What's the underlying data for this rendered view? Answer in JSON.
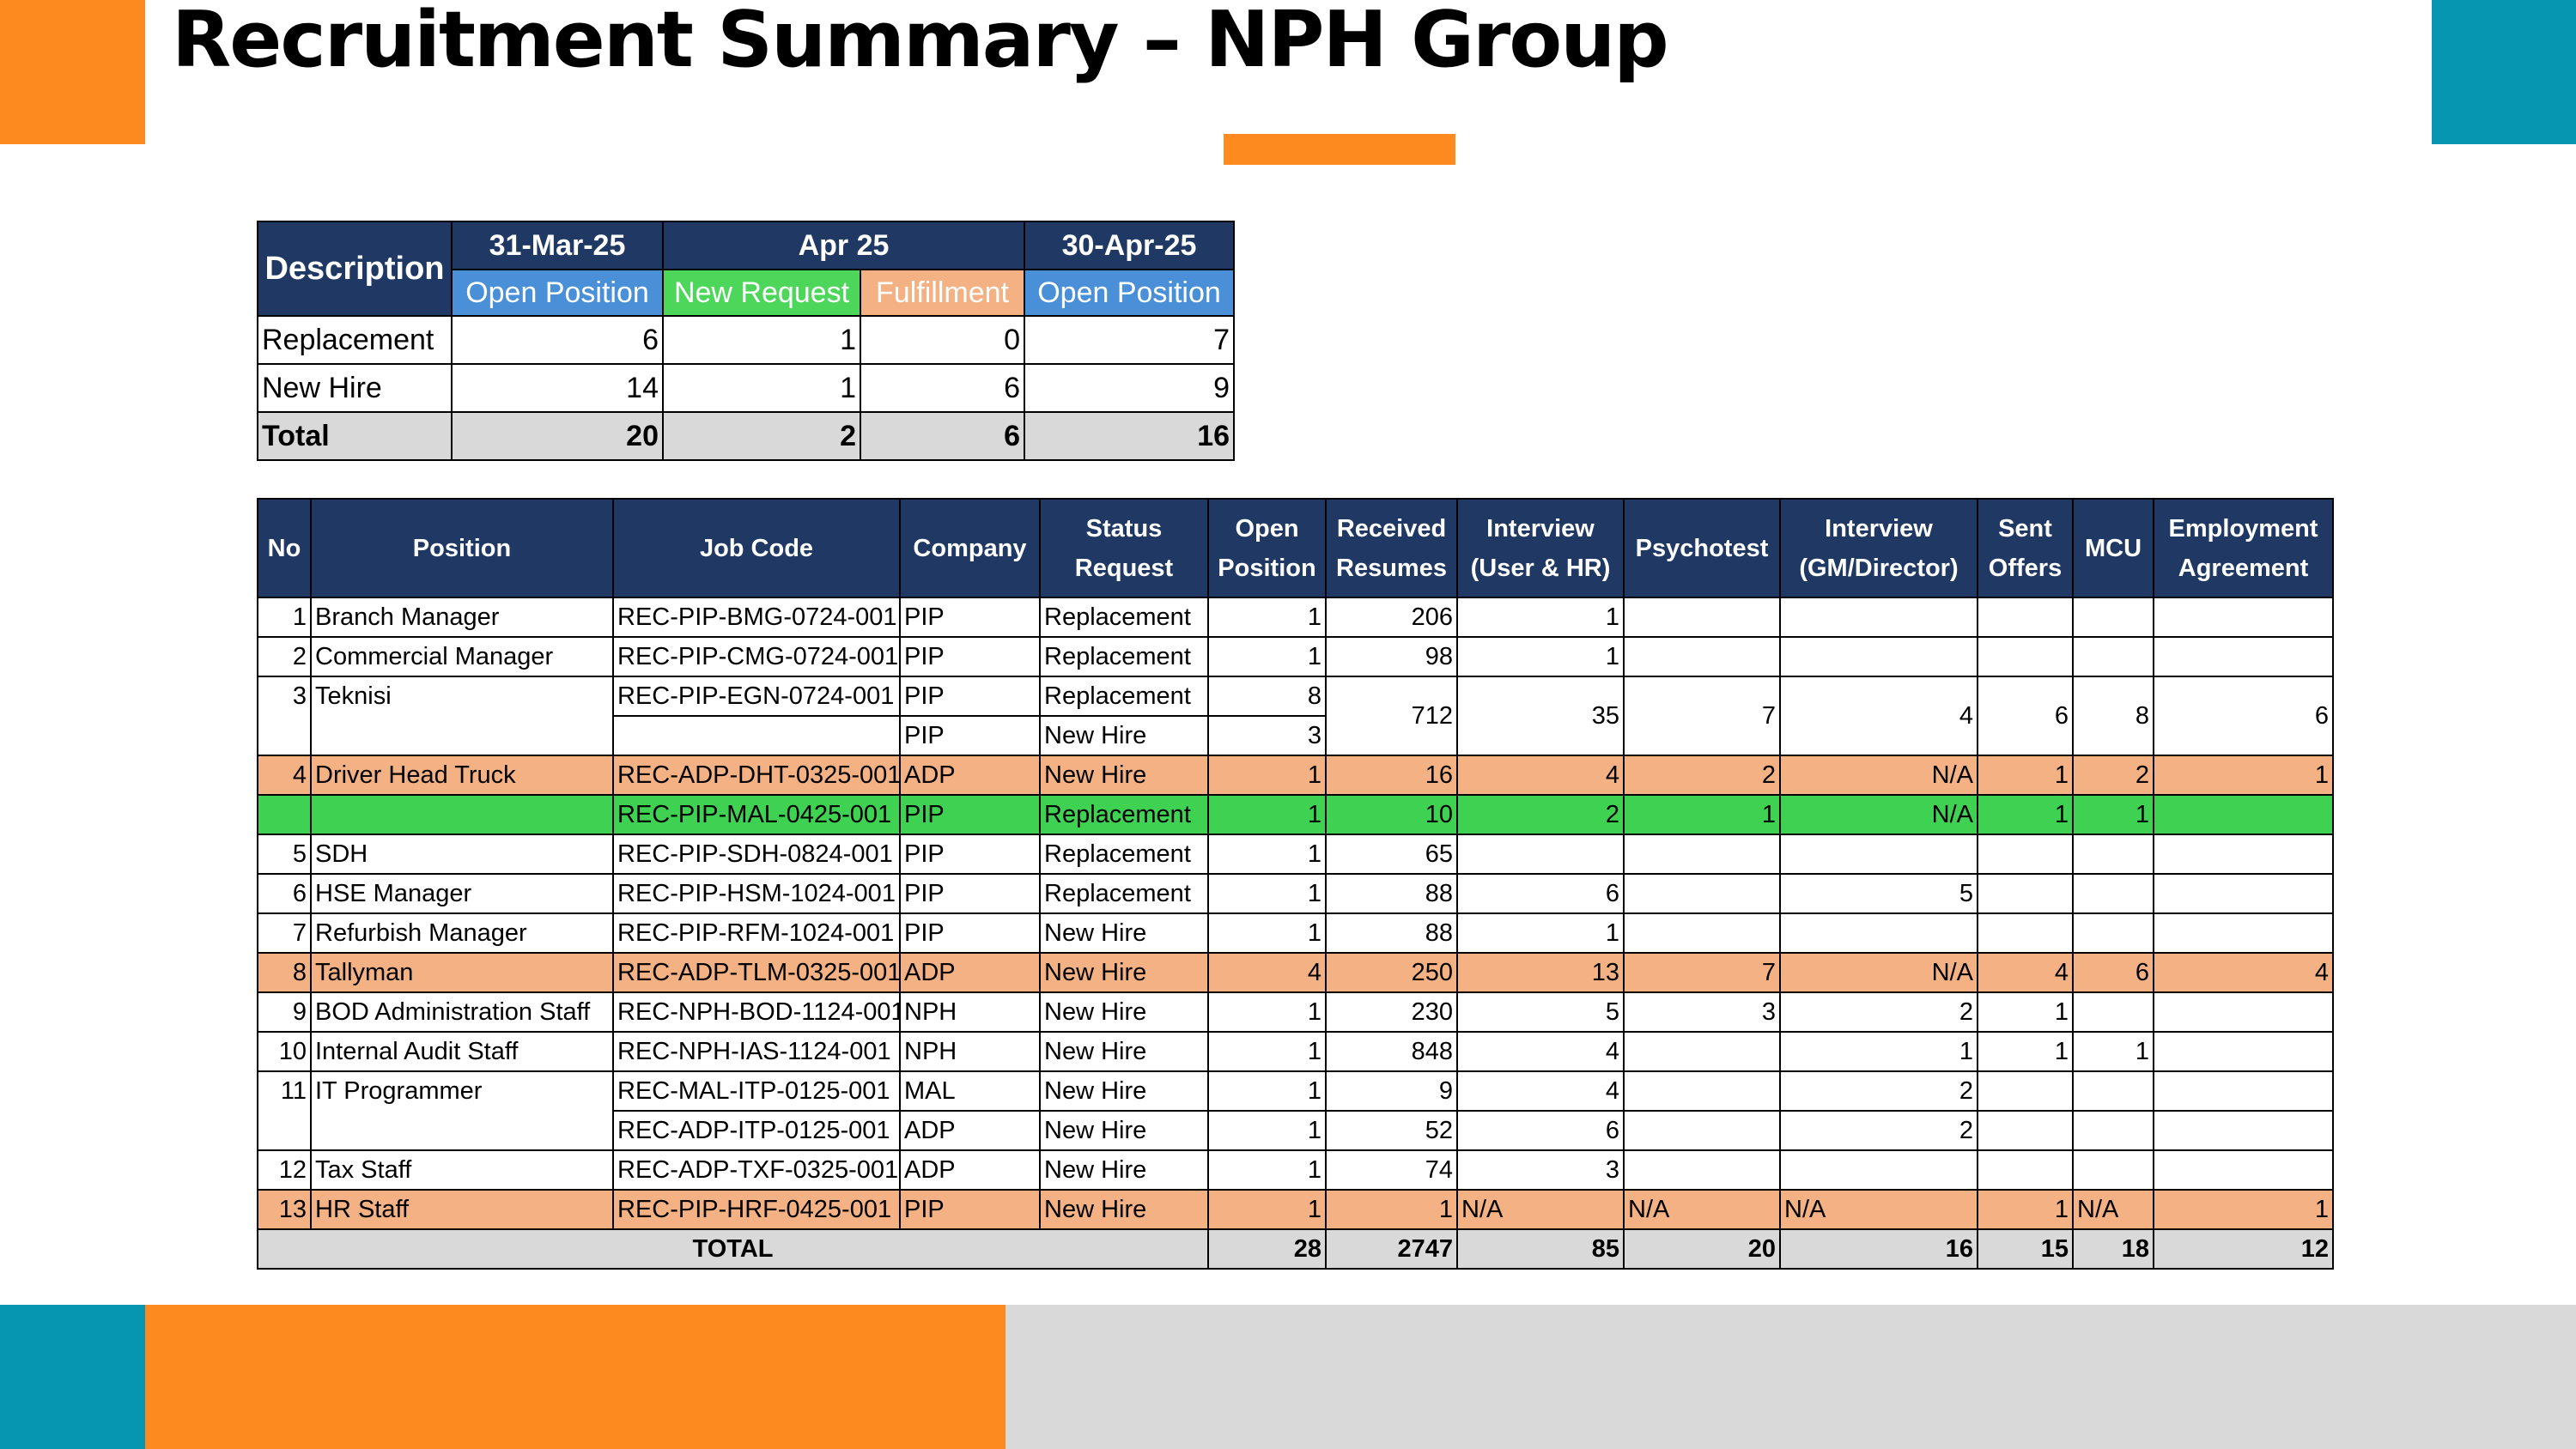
{
  "page": {
    "title": "Recruitment Summary – NPH Group",
    "colors": {
      "orange": "#fd8a1f",
      "teal": "#0796b2",
      "navy": "#1f3864",
      "light_gray": "#d9d9d9",
      "highlight_orange": "#f4b183",
      "highlight_green": "#3fd152",
      "open_position_blue": "#4a90d9",
      "new_request_green": "#4cd75a",
      "fulfillment_salmon": "#f4b183"
    }
  },
  "summary": {
    "description_header": "Description",
    "date_headers": [
      "31-Mar-25",
      "Apr 25",
      "30-Apr-25"
    ],
    "sub_headers": [
      "Open Position",
      "New Request",
      "Fulfillment",
      "Open Position"
    ],
    "rows": [
      {
        "label": "Replacement",
        "values": [
          "6",
          "1",
          "0",
          "7"
        ]
      },
      {
        "label": "New Hire",
        "values": [
          "14",
          "1",
          "6",
          "9"
        ]
      },
      {
        "label": "Total",
        "values": [
          "20",
          "2",
          "6",
          "16"
        ]
      }
    ]
  },
  "detail": {
    "headers": [
      "No",
      "Position",
      "Job Code",
      "Company",
      "Status Request",
      "Open Position",
      "Received Resumes",
      "Interview (User & HR)",
      "Psychotest",
      "Interview (GM/Director)",
      "Sent Offers",
      "MCU",
      "Employment Agreement"
    ],
    "rows": [
      {
        "no": "1",
        "position": "Branch Manager",
        "job_code": "REC-PIP-BMG-0724-001",
        "company": "PIP",
        "status": "Replacement",
        "open": "1",
        "received": "206",
        "interview_user_hr": "1",
        "psychotest": "",
        "interview_gm": "",
        "sent_offers": "",
        "mcu": "",
        "agreement": ""
      },
      {
        "no": "2",
        "position": "Commercial Manager",
        "job_code": "REC-PIP-CMG-0724-001",
        "company": "PIP",
        "status": "Replacement",
        "open": "1",
        "received": "98",
        "interview_user_hr": "1",
        "psychotest": "",
        "interview_gm": "",
        "sent_offers": "",
        "mcu": "",
        "agreement": ""
      },
      {
        "no": "3",
        "position": "Teknisi",
        "job_code": "REC-PIP-EGN-0724-001",
        "company": "PIP",
        "status": "Replacement",
        "open": "8",
        "received": "712",
        "interview_user_hr": "35",
        "psychotest": "7",
        "interview_gm": "4",
        "sent_offers": "6",
        "mcu": "8",
        "agreement": "6"
      },
      {
        "no": "",
        "position": "",
        "job_code": "",
        "company": "PIP",
        "status": "New Hire",
        "open": "3"
      },
      {
        "no": "4",
        "position": "Driver Head Truck",
        "job_code": "REC-ADP-DHT-0325-001",
        "company": "ADP",
        "status": "New Hire",
        "open": "1",
        "received": "16",
        "interview_user_hr": "4",
        "psychotest": "2",
        "interview_gm": "N/A",
        "sent_offers": "1",
        "mcu": "2",
        "agreement": "1"
      },
      {
        "no": "",
        "position": "",
        "job_code": "REC-PIP-MAL-0425-001",
        "company": "PIP",
        "status": "Replacement",
        "open": "1",
        "received": "10",
        "interview_user_hr": "2",
        "psychotest": "1",
        "interview_gm": "N/A",
        "sent_offers": "1",
        "mcu": "1",
        "agreement": ""
      },
      {
        "no": "5",
        "position": "SDH",
        "job_code": "REC-PIP-SDH-0824-001",
        "company": "PIP",
        "status": "Replacement",
        "open": "1",
        "received": "65",
        "interview_user_hr": "",
        "psychotest": "",
        "interview_gm": "",
        "sent_offers": "",
        "mcu": "",
        "agreement": ""
      },
      {
        "no": "6",
        "position": "HSE Manager",
        "job_code": "REC-PIP-HSM-1024-001",
        "company": "PIP",
        "status": "Replacement",
        "open": "1",
        "received": "88",
        "interview_user_hr": "6",
        "psychotest": "",
        "interview_gm": "5",
        "sent_offers": "",
        "mcu": "",
        "agreement": ""
      },
      {
        "no": "7",
        "position": "Refurbish Manager",
        "job_code": "REC-PIP-RFM-1024-001",
        "company": "PIP",
        "status": "New Hire",
        "open": "1",
        "received": "88",
        "interview_user_hr": "1",
        "psychotest": "",
        "interview_gm": "",
        "sent_offers": "",
        "mcu": "",
        "agreement": ""
      },
      {
        "no": "8",
        "position": "Tallyman",
        "job_code": "REC-ADP-TLM-0325-001",
        "company": "ADP",
        "status": "New Hire",
        "open": "4",
        "received": "250",
        "interview_user_hr": "13",
        "psychotest": "7",
        "interview_gm": "N/A",
        "sent_offers": "4",
        "mcu": "6",
        "agreement": "4"
      },
      {
        "no": "9",
        "position": "BOD Administration Staff",
        "job_code": "REC-NPH-BOD-1124-001",
        "company": "NPH",
        "status": "New Hire",
        "open": "1",
        "received": "230",
        "interview_user_hr": "5",
        "psychotest": "3",
        "interview_gm": "2",
        "sent_offers": "1",
        "mcu": "",
        "agreement": ""
      },
      {
        "no": "10",
        "position": "Internal Audit Staff",
        "job_code": "REC-NPH-IAS-1124-001",
        "company": "NPH",
        "status": "New Hire",
        "open": "1",
        "received": "848",
        "interview_user_hr": "4",
        "psychotest": "",
        "interview_gm": "1",
        "sent_offers": "1",
        "mcu": "1",
        "agreement": ""
      },
      {
        "no": "11",
        "position": "IT Programmer",
        "job_code": "REC-MAL-ITP-0125-001",
        "company": "MAL",
        "status": "New Hire",
        "open": "1",
        "received": "9",
        "interview_user_hr": "4",
        "psychotest": "",
        "interview_gm": "2",
        "sent_offers": "",
        "mcu": "",
        "agreement": ""
      },
      {
        "no": "",
        "position": "",
        "job_code": "REC-ADP-ITP-0125-001",
        "company": "ADP",
        "status": "New Hire",
        "open": "1",
        "received": "52",
        "interview_user_hr": "6",
        "psychotest": "",
        "interview_gm": "2",
        "sent_offers": "",
        "mcu": "",
        "agreement": ""
      },
      {
        "no": "12",
        "position": "Tax Staff",
        "job_code": "REC-ADP-TXF-0325-001",
        "company": "ADP",
        "status": "New Hire",
        "open": "1",
        "received": "74",
        "interview_user_hr": "3",
        "psychotest": "",
        "interview_gm": "",
        "sent_offers": "",
        "mcu": "",
        "agreement": ""
      },
      {
        "no": "13",
        "position": "HR Staff",
        "job_code": "REC-PIP-HRF-0425-001",
        "company": "PIP",
        "status": "New Hire",
        "open": "1",
        "received": "1",
        "interview_user_hr": "N/A",
        "psychotest": "N/A",
        "interview_gm": "N/A",
        "sent_offers": "1",
        "mcu": "N/A",
        "agreement": "1"
      }
    ],
    "total": {
      "label": "TOTAL",
      "open": "28",
      "received": "2747",
      "interview_user_hr": "85",
      "psychotest": "20",
      "interview_gm": "16",
      "sent_offers": "15",
      "mcu": "18",
      "agreement": "12"
    }
  }
}
